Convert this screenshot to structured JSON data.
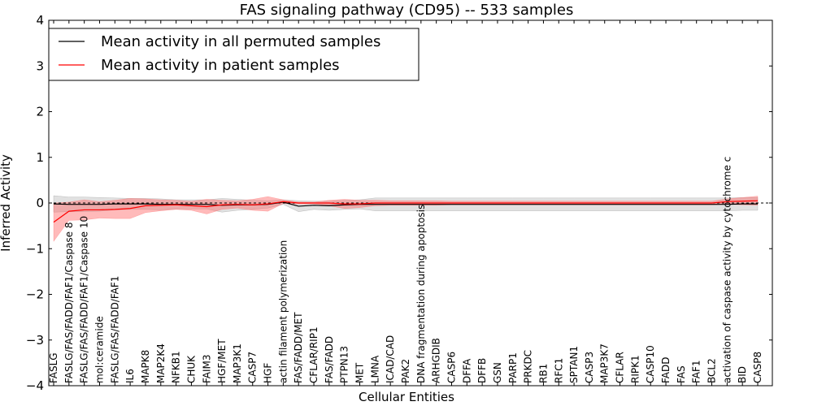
{
  "chart_data": {
    "type": "line",
    "title": "FAS signaling pathway (CD95) -- 533 samples",
    "xlabel": "Cellular Entities",
    "ylabel": "Inferred Activity",
    "ylim": [
      -4,
      4
    ],
    "yticks": [
      "−4",
      "−3",
      "−2",
      "−1",
      "0",
      "1",
      "2",
      "3",
      "4"
    ],
    "ytick_values": [
      -4,
      -3,
      -2,
      -1,
      0,
      1,
      2,
      3,
      4
    ],
    "grid": false,
    "zero_line": "dashed",
    "legend_position": "top-left",
    "categories": [
      "FASLG",
      "FASLG/FAS/FADD/FAF1/Caspase 8",
      "FASLG/FAS/FADD/FAF1/Caspase 10",
      "mol:ceramide",
      "FASLG/FAS/FADD/FAF1",
      "IL6",
      "MAPK8",
      "MAP2K4",
      "NFKB1",
      "CHUK",
      "FAIM3",
      "HGF/MET",
      "MAP3K1",
      "CASP7",
      "HGF",
      "actin filament polymerization",
      "FAS/FADD/MET",
      "CFLAR/RIP1",
      "FAS/FADD",
      "PTPN13",
      "MET",
      "LMNA",
      "ICAD/CAD",
      "PAK2",
      "DNA fragmentation during apoptosis",
      "ARHGDIB",
      "CASP6",
      "DFFA",
      "DFFB",
      "GSN",
      "PARP1",
      "PRKDC",
      "RB1",
      "RFC1",
      "SPTAN1",
      "CASP3",
      "MAP3K7",
      "CFLAR",
      "RIPK1",
      "CASP10",
      "FADD",
      "FAS",
      "FAF1",
      "BCL2",
      "activation of caspase activity by cytochrome c",
      "BID",
      "CASP8"
    ],
    "series": [
      {
        "name": "Mean activity in all permuted samples",
        "color": "#000000",
        "band_color": "#888888",
        "values": [
          -0.02,
          -0.03,
          -0.03,
          -0.03,
          -0.02,
          -0.02,
          -0.02,
          -0.03,
          -0.03,
          -0.03,
          -0.03,
          -0.05,
          -0.04,
          -0.04,
          -0.03,
          0.02,
          -0.07,
          -0.05,
          -0.06,
          -0.04,
          -0.03,
          -0.03,
          -0.03,
          -0.03,
          -0.03,
          -0.03,
          -0.03,
          -0.03,
          -0.03,
          -0.03,
          -0.03,
          -0.03,
          -0.03,
          -0.03,
          -0.03,
          -0.03,
          -0.03,
          -0.03,
          -0.03,
          -0.03,
          -0.03,
          -0.03,
          -0.03,
          -0.03,
          -0.03,
          -0.02,
          -0.02
        ],
        "band": [
          0.18,
          0.16,
          0.16,
          0.15,
          0.13,
          0.12,
          0.12,
          0.12,
          0.1,
          0.1,
          0.1,
          0.15,
          0.12,
          0.1,
          0.08,
          0.05,
          0.12,
          0.09,
          0.1,
          0.1,
          0.1,
          0.14,
          0.14,
          0.14,
          0.14,
          0.14,
          0.14,
          0.14,
          0.14,
          0.14,
          0.14,
          0.14,
          0.14,
          0.14,
          0.14,
          0.14,
          0.14,
          0.14,
          0.14,
          0.14,
          0.14,
          0.14,
          0.14,
          0.14,
          0.14,
          0.14,
          0.14
        ]
      },
      {
        "name": "Mean activity in patient samples",
        "color": "#ff0000",
        "band_color": "#ff6666",
        "values": [
          -0.42,
          -0.18,
          -0.15,
          -0.15,
          -0.14,
          -0.12,
          -0.06,
          -0.05,
          -0.04,
          -0.06,
          -0.08,
          -0.04,
          -0.03,
          -0.04,
          -0.02,
          0.03,
          0.0,
          0.0,
          0.0,
          -0.02,
          -0.02,
          0.0,
          0.0,
          0.0,
          0.0,
          0.0,
          0.0,
          0.0,
          0.0,
          0.0,
          0.0,
          0.0,
          0.0,
          0.0,
          0.0,
          0.0,
          0.0,
          0.0,
          0.0,
          0.0,
          0.0,
          0.0,
          0.0,
          0.0,
          0.03,
          0.04,
          0.05
        ],
        "band": [
          0.42,
          0.2,
          0.22,
          0.18,
          0.2,
          0.22,
          0.15,
          0.12,
          0.1,
          0.1,
          0.16,
          0.1,
          0.08,
          0.12,
          0.16,
          0.04,
          0.02,
          0.02,
          0.06,
          0.1,
          0.08,
          0.06,
          0.05,
          0.05,
          0.05,
          0.05,
          0.04,
          0.04,
          0.04,
          0.04,
          0.04,
          0.04,
          0.04,
          0.04,
          0.04,
          0.04,
          0.04,
          0.04,
          0.04,
          0.04,
          0.04,
          0.04,
          0.04,
          0.04,
          0.06,
          0.08,
          0.1
        ]
      }
    ]
  }
}
